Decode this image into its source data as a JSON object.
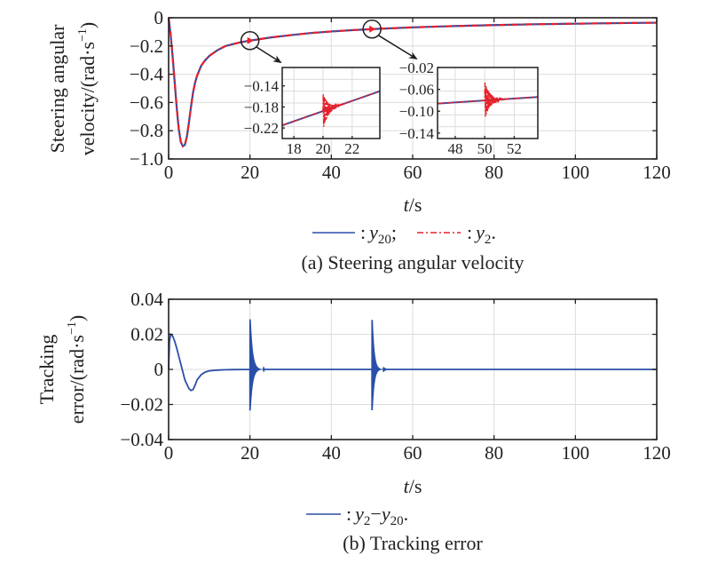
{
  "chart_data": [
    {
      "type": "line",
      "title": "(a) Steering angular velocity",
      "xlabel": "t/s",
      "xlabel_italic": "t",
      "xlabel_unit": "/s",
      "ylabel_line1": "Steering angular",
      "ylabel_line2": "velocity/(rad·s",
      "ylabel_sup": "−1",
      "ylabel_close": ")",
      "xlim": [
        0,
        120
      ],
      "ylim": [
        -1.0,
        0
      ],
      "xticks": [
        "0",
        "20",
        "40",
        "60",
        "80",
        "100",
        "120"
      ],
      "yticks": [
        "0",
        "−0.2",
        "−0.4",
        "−0.6",
        "−0.8",
        "−1.0"
      ],
      "ytick_values": [
        0,
        -0.2,
        -0.4,
        -0.6,
        -0.8,
        -1.0
      ],
      "xtick_values": [
        0,
        20,
        40,
        60,
        80,
        100,
        120
      ],
      "grid": true,
      "legend_position": "bottom",
      "legend": [
        {
          "colon": ":",
          "var": "y",
          "sub": "20",
          "end": ";",
          "style": "solid",
          "color": "#2a4fa8"
        },
        {
          "colon": ":",
          "var": "y",
          "sub": "2",
          "end": ".",
          "style": "dash-dot",
          "color": "#e8202a"
        }
      ],
      "series": [
        {
          "name": "y20",
          "color": "#2a4fa8",
          "x": [
            0,
            0.5,
            1,
            1.5,
            2,
            2.5,
            3,
            3.5,
            4,
            4.5,
            5,
            5.5,
            6,
            6.5,
            7,
            8,
            9,
            10,
            12,
            14,
            16,
            18,
            20,
            25,
            30,
            35,
            40,
            45,
            50,
            60,
            70,
            80,
            90,
            100,
            110,
            120
          ],
          "y": [
            0,
            -0.12,
            -0.28,
            -0.46,
            -0.64,
            -0.79,
            -0.88,
            -0.91,
            -0.9,
            -0.84,
            -0.74,
            -0.63,
            -0.53,
            -0.46,
            -0.41,
            -0.34,
            -0.3,
            -0.27,
            -0.23,
            -0.2,
            -0.185,
            -0.172,
            -0.162,
            -0.14,
            -0.123,
            -0.108,
            -0.097,
            -0.088,
            -0.08,
            -0.068,
            -0.059,
            -0.052,
            -0.046,
            -0.042,
            -0.038,
            -0.035
          ]
        },
        {
          "name": "y2",
          "color": "#e8202a",
          "x": [
            0,
            0.5,
            1,
            1.5,
            2,
            2.5,
            3,
            3.5,
            4,
            4.5,
            5,
            5.5,
            6,
            6.5,
            7,
            8,
            9,
            10,
            12,
            14,
            16,
            18,
            20,
            25,
            30,
            35,
            40,
            45,
            50,
            60,
            70,
            80,
            90,
            100,
            110,
            120
          ],
          "y": [
            0,
            -0.12,
            -0.28,
            -0.46,
            -0.64,
            -0.79,
            -0.88,
            -0.91,
            -0.9,
            -0.84,
            -0.74,
            -0.63,
            -0.53,
            -0.46,
            -0.41,
            -0.34,
            -0.3,
            -0.27,
            -0.23,
            -0.2,
            -0.185,
            -0.172,
            -0.162,
            -0.14,
            -0.123,
            -0.108,
            -0.097,
            -0.088,
            -0.08,
            -0.068,
            -0.059,
            -0.052,
            -0.046,
            -0.042,
            -0.038,
            -0.035
          ]
        }
      ],
      "insets": [
        {
          "xlim": [
            17.2,
            23.9
          ],
          "ylim": [
            -0.24,
            -0.105
          ],
          "xticks": [
            "18",
            "20",
            "22"
          ],
          "xtick_values": [
            18,
            20,
            22
          ],
          "yticks": [
            "−0.14",
            "−0.18",
            "−0.22"
          ],
          "ytick_values": [
            -0.14,
            -0.18,
            -0.22
          ],
          "baseline": {
            "x": [
              17.2,
              23.9
            ],
            "y": [
              -0.215,
              -0.15
            ]
          },
          "oscillation": {
            "center": 20,
            "amplitude": 0.035,
            "decay": 1.0
          }
        },
        {
          "xlim": [
            46.8,
            53.6
          ],
          "ylim": [
            -0.15,
            -0.02
          ],
          "xticks": [
            "48",
            "50",
            "52"
          ],
          "xtick_values": [
            48,
            50,
            52
          ],
          "yticks": [
            "−0.02",
            "−0.06",
            "−0.10",
            "−0.14"
          ],
          "ytick_values": [
            -0.02,
            -0.06,
            -0.1,
            -0.14
          ],
          "baseline": {
            "x": [
              46.8,
              53.6
            ],
            "y": [
              -0.086,
              -0.074
            ]
          },
          "oscillation": {
            "center": 50,
            "amplitude": 0.035,
            "decay": 1.0
          }
        }
      ],
      "zoom_markers": [
        {
          "t": 20,
          "value": -0.162
        },
        {
          "t": 50,
          "value": -0.08
        }
      ]
    },
    {
      "type": "line",
      "title": "(b) Tracking error",
      "xlabel": "t/s",
      "xlabel_italic": "t",
      "xlabel_unit": "/s",
      "ylabel_line1": "Tracking",
      "ylabel_line2": "error/(rad·s",
      "ylabel_sup": "−1",
      "ylabel_close": ")",
      "xlim": [
        0,
        120
      ],
      "ylim": [
        -0.04,
        0.04
      ],
      "xticks": [
        "0",
        "20",
        "40",
        "60",
        "80",
        "100",
        "120"
      ],
      "xtick_values": [
        0,
        20,
        40,
        60,
        80,
        100,
        120
      ],
      "yticks": [
        "0.04",
        "0.02",
        "0",
        "−0.02",
        "−0.04"
      ],
      "ytick_values": [
        0.04,
        0.02,
        0,
        -0.02,
        -0.04
      ],
      "grid": true,
      "legend_position": "bottom",
      "legend": [
        {
          "colon": ":",
          "var1": "y",
          "sub1": "2",
          "minus": "−",
          "var2": "y",
          "sub2": "20",
          "end": ".",
          "style": "solid",
          "color": "#2a4fa8"
        }
      ],
      "series": [
        {
          "name": "y2−y20",
          "color": "#2a4fa8",
          "x": [
            0,
            0.2,
            0.5,
            1,
            1.5,
            2,
            3,
            4,
            5,
            5.5,
            6,
            6.5,
            7,
            8,
            9,
            10,
            12,
            14,
            16,
            18,
            19.9
          ],
          "y": [
            0,
            0.016,
            0.02,
            0.019,
            0.016,
            0.012,
            0.003,
            -0.006,
            -0.011,
            -0.012,
            -0.0115,
            -0.009,
            -0.006,
            -0.003,
            -0.0015,
            -0.0008,
            -0.0004,
            -0.0002,
            -0.0001,
            -5e-05,
            0
          ]
        },
        {
          "name": "spikes",
          "events": [
            {
              "t": 20,
              "peak": 0.03,
              "trough": -0.024,
              "decay": 1.2
            },
            {
              "t": 50,
              "peak": 0.03,
              "trough": -0.024,
              "decay": 1.0
            }
          ]
        }
      ]
    }
  ]
}
